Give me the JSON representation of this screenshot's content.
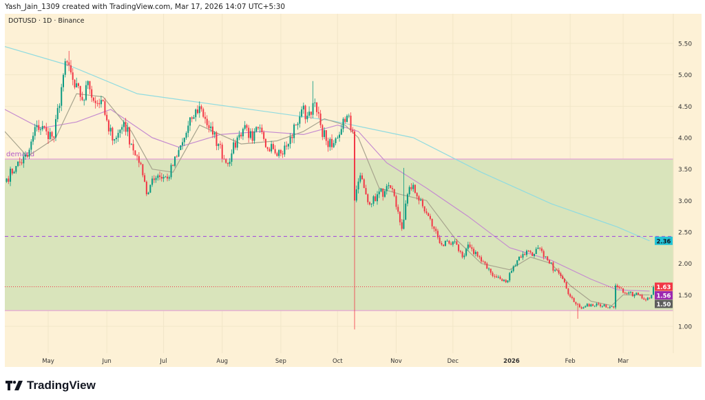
{
  "header": {
    "credit": "Yash_Jain_1309 created with TradingView.com, Mar 17, 2026 14:07 UTC+5:30",
    "symbol": "DOTUSD · 1D · Binance"
  },
  "footer": {
    "logo_text": "TradingView"
  },
  "colors": {
    "background": "#fdf1d6",
    "zone_fill": "#d9e4bb",
    "zone_border": "#e5a5d6",
    "up": "#089981",
    "down": "#f23645",
    "ma_slow": "#8fdbe0",
    "ma_mid": "#c58bd0",
    "ma_fast": "#a7a48e",
    "dashed_level": "#a040e0",
    "grid": "#f1e6c8"
  },
  "chart_data": {
    "type": "candlestick",
    "title": "DOTUSD · 1D · Binance",
    "xlabel": "",
    "ylabel": "",
    "ylim": [
      0.75,
      5.75
    ],
    "grid": true,
    "y_ticks": [
      "1.00",
      "1.50",
      "2.00",
      "2.50",
      "3.00",
      "3.50",
      "4.00",
      "4.50",
      "5.00",
      "5.50"
    ],
    "x_ticks": [
      {
        "label": "May",
        "date": "2025-05-01"
      },
      {
        "label": "Jun",
        "date": "2025-06-01"
      },
      {
        "label": "Jul",
        "date": "2025-07-01"
      },
      {
        "label": "Aug",
        "date": "2025-08-01"
      },
      {
        "label": "Sep",
        "date": "2025-09-01"
      },
      {
        "label": "Oct",
        "date": "2025-10-01"
      },
      {
        "label": "Nov",
        "date": "2025-11-01"
      },
      {
        "label": "Dec",
        "date": "2025-12-01"
      },
      {
        "label": "2026",
        "date": "2026-01-01",
        "bold": true
      },
      {
        "label": "Feb",
        "date": "2026-02-01"
      },
      {
        "label": "Mar",
        "date": "2026-03-01"
      }
    ],
    "close_path": [
      [
        "2025-04-09",
        3.35
      ],
      [
        "2025-04-14",
        3.55
      ],
      [
        "2025-04-20",
        3.7
      ],
      [
        "2025-04-25",
        4.2
      ],
      [
        "2025-04-30",
        4.1
      ],
      [
        "2025-05-04",
        4.0
      ],
      [
        "2025-05-09",
        5.0
      ],
      [
        "2025-05-11",
        5.2
      ],
      [
        "2025-05-15",
        4.8
      ],
      [
        "2025-05-20",
        4.6
      ],
      [
        "2025-05-22",
        4.9
      ],
      [
        "2025-05-26",
        4.55
      ],
      [
        "2025-05-29",
        4.6
      ],
      [
        "2025-06-02",
        4.1
      ],
      [
        "2025-06-06",
        4.0
      ],
      [
        "2025-06-10",
        4.25
      ],
      [
        "2025-06-14",
        3.9
      ],
      [
        "2025-06-18",
        3.6
      ],
      [
        "2025-06-21",
        3.3
      ],
      [
        "2025-06-22",
        3.1
      ],
      [
        "2025-06-25",
        3.35
      ],
      [
        "2025-06-28",
        3.4
      ],
      [
        "2025-07-03",
        3.35
      ],
      [
        "2025-07-08",
        3.7
      ],
      [
        "2025-07-12",
        4.0
      ],
      [
        "2025-07-16",
        4.3
      ],
      [
        "2025-07-20",
        4.5
      ],
      [
        "2025-07-23",
        4.3
      ],
      [
        "2025-07-27",
        4.05
      ],
      [
        "2025-07-30",
        3.9
      ],
      [
        "2025-08-03",
        3.6
      ],
      [
        "2025-08-06",
        3.75
      ],
      [
        "2025-08-10",
        4.05
      ],
      [
        "2025-08-13",
        4.2
      ],
      [
        "2025-08-17",
        3.95
      ],
      [
        "2025-08-20",
        4.15
      ],
      [
        "2025-08-24",
        3.85
      ],
      [
        "2025-08-27",
        3.9
      ],
      [
        "2025-09-01",
        3.75
      ],
      [
        "2025-09-05",
        3.9
      ],
      [
        "2025-09-09",
        4.2
      ],
      [
        "2025-09-12",
        4.45
      ],
      [
        "2025-09-15",
        4.35
      ],
      [
        "2025-09-18",
        4.55
      ],
      [
        "2025-09-22",
        4.2
      ],
      [
        "2025-09-25",
        3.95
      ],
      [
        "2025-09-28",
        3.85
      ],
      [
        "2025-10-01",
        4.0
      ],
      [
        "2025-10-04",
        4.3
      ],
      [
        "2025-10-07",
        4.35
      ],
      [
        "2025-10-09",
        4.1
      ],
      [
        "2025-10-10",
        3.0
      ],
      [
        "2025-10-13",
        3.4
      ],
      [
        "2025-10-16",
        3.1
      ],
      [
        "2025-10-19",
        2.95
      ],
      [
        "2025-10-22",
        3.1
      ],
      [
        "2025-10-26",
        3.15
      ],
      [
        "2025-10-29",
        3.2
      ],
      [
        "2025-11-01",
        2.9
      ],
      [
        "2025-11-04",
        2.55
      ],
      [
        "2025-11-07",
        3.1
      ],
      [
        "2025-11-10",
        3.25
      ],
      [
        "2025-11-13",
        3.0
      ],
      [
        "2025-11-17",
        2.8
      ],
      [
        "2025-11-21",
        2.55
      ],
      [
        "2025-11-25",
        2.3
      ],
      [
        "2025-11-30",
        2.3
      ],
      [
        "2025-12-03",
        2.3
      ],
      [
        "2025-12-06",
        2.1
      ],
      [
        "2025-12-09",
        2.3
      ],
      [
        "2025-12-12",
        2.15
      ],
      [
        "2025-12-15",
        2.1
      ],
      [
        "2025-12-18",
        2.0
      ],
      [
        "2025-12-22",
        1.8
      ],
      [
        "2025-12-26",
        1.75
      ],
      [
        "2025-12-29",
        1.7
      ],
      [
        "2025-12-31",
        1.85
      ],
      [
        "2026-01-04",
        2.05
      ],
      [
        "2026-01-07",
        2.15
      ],
      [
        "2026-01-10",
        2.2
      ],
      [
        "2026-01-13",
        2.15
      ],
      [
        "2026-01-15",
        2.25
      ],
      [
        "2026-01-18",
        2.1
      ],
      [
        "2026-01-21",
        2.0
      ],
      [
        "2026-01-24",
        1.9
      ],
      [
        "2026-01-27",
        1.8
      ],
      [
        "2026-01-30",
        1.6
      ],
      [
        "2026-02-02",
        1.45
      ],
      [
        "2026-02-05",
        1.35
      ],
      [
        "2026-02-08",
        1.3
      ],
      [
        "2026-02-12",
        1.35
      ],
      [
        "2026-02-16",
        1.35
      ],
      [
        "2026-02-20",
        1.3
      ],
      [
        "2026-02-24",
        1.3
      ],
      [
        "2026-02-25",
        1.65
      ],
      [
        "2026-02-28",
        1.6
      ],
      [
        "2026-03-03",
        1.52
      ],
      [
        "2026-03-07",
        1.5
      ],
      [
        "2026-03-10",
        1.5
      ],
      [
        "2026-03-13",
        1.42
      ],
      [
        "2026-03-16",
        1.5
      ],
      [
        "2026-03-17",
        1.63
      ]
    ],
    "notable_wicks": [
      {
        "date": "2025-05-12",
        "high": 5.38
      },
      {
        "date": "2025-09-18",
        "high": 4.9
      },
      {
        "date": "2025-10-10",
        "low": 0.95
      },
      {
        "date": "2025-11-05",
        "high": 3.52
      },
      {
        "date": "2026-02-05",
        "low": 1.12
      }
    ],
    "moving_averages": [
      {
        "key": "ma_slow",
        "last": "2.36",
        "points": [
          [
            "2025-04-08",
            5.45
          ],
          [
            "2025-05-12",
            5.15
          ],
          [
            "2025-06-17",
            4.7
          ],
          [
            "2025-09-28",
            4.27
          ],
          [
            "2025-11-10",
            4.0
          ],
          [
            "2025-12-16",
            3.45
          ],
          [
            "2026-01-22",
            2.95
          ],
          [
            "2026-02-26",
            2.58
          ],
          [
            "2026-03-15",
            2.36
          ]
        ]
      },
      {
        "key": "ma_mid",
        "last": "1.56",
        "points": [
          [
            "2025-04-08",
            4.45
          ],
          [
            "2025-04-27",
            4.15
          ],
          [
            "2025-05-16",
            4.25
          ],
          [
            "2025-06-03",
            4.45
          ],
          [
            "2025-06-25",
            4.0
          ],
          [
            "2025-07-09",
            3.85
          ],
          [
            "2025-07-31",
            4.05
          ],
          [
            "2025-08-22",
            4.1
          ],
          [
            "2025-09-13",
            4.05
          ],
          [
            "2025-10-01",
            4.2
          ],
          [
            "2025-10-12",
            4.1
          ],
          [
            "2025-10-27",
            3.6
          ],
          [
            "2025-11-17",
            3.2
          ],
          [
            "2025-12-09",
            2.75
          ],
          [
            "2025-12-31",
            2.25
          ],
          [
            "2026-01-22",
            2.05
          ],
          [
            "2026-02-12",
            1.75
          ],
          [
            "2026-02-26",
            1.58
          ],
          [
            "2026-03-15",
            1.56
          ]
        ]
      },
      {
        "key": "ma_fast",
        "last": "1.50",
        "points": [
          [
            "2025-04-08",
            4.1
          ],
          [
            "2025-04-20",
            3.7
          ],
          [
            "2025-05-05",
            4.0
          ],
          [
            "2025-05-16",
            4.7
          ],
          [
            "2025-05-30",
            4.65
          ],
          [
            "2025-06-14",
            4.1
          ],
          [
            "2025-06-25",
            3.5
          ],
          [
            "2025-07-06",
            3.45
          ],
          [
            "2025-07-20",
            4.2
          ],
          [
            "2025-07-31",
            4.05
          ],
          [
            "2025-08-11",
            3.9
          ],
          [
            "2025-08-30",
            3.95
          ],
          [
            "2025-09-13",
            4.1
          ],
          [
            "2025-09-24",
            4.3
          ],
          [
            "2025-10-05",
            4.2
          ],
          [
            "2025-10-12",
            4.0
          ],
          [
            "2025-10-23",
            3.2
          ],
          [
            "2025-11-03",
            3.1
          ],
          [
            "2025-11-17",
            3.0
          ],
          [
            "2025-12-02",
            2.4
          ],
          [
            "2025-12-16",
            2.0
          ],
          [
            "2025-12-31",
            1.9
          ],
          [
            "2026-01-11",
            2.1
          ],
          [
            "2026-01-22",
            2.0
          ],
          [
            "2026-02-01",
            1.65
          ],
          [
            "2026-02-12",
            1.4
          ],
          [
            "2026-02-23",
            1.33
          ],
          [
            "2026-03-01",
            1.5
          ],
          [
            "2026-03-15",
            1.5
          ]
        ]
      }
    ],
    "demand_zone": {
      "label": "demand",
      "top": 3.66,
      "bottom": 1.25
    },
    "dashed_level": 2.43,
    "last_price": "1.63",
    "price_badges": [
      {
        "value": "2.36",
        "price": 2.36,
        "bg": "#22c3d6",
        "fg": "#131722"
      },
      {
        "value": "1.63",
        "price": 1.63,
        "bg": "#f23645",
        "fg": "#ffffff"
      },
      {
        "value": "1.56",
        "price": 1.56,
        "bg": "#9c27b0",
        "fg": "#ffffff"
      },
      {
        "value": "1.50",
        "price": 1.5,
        "bg": "#5d5d5d",
        "fg": "#ffffff"
      }
    ]
  }
}
